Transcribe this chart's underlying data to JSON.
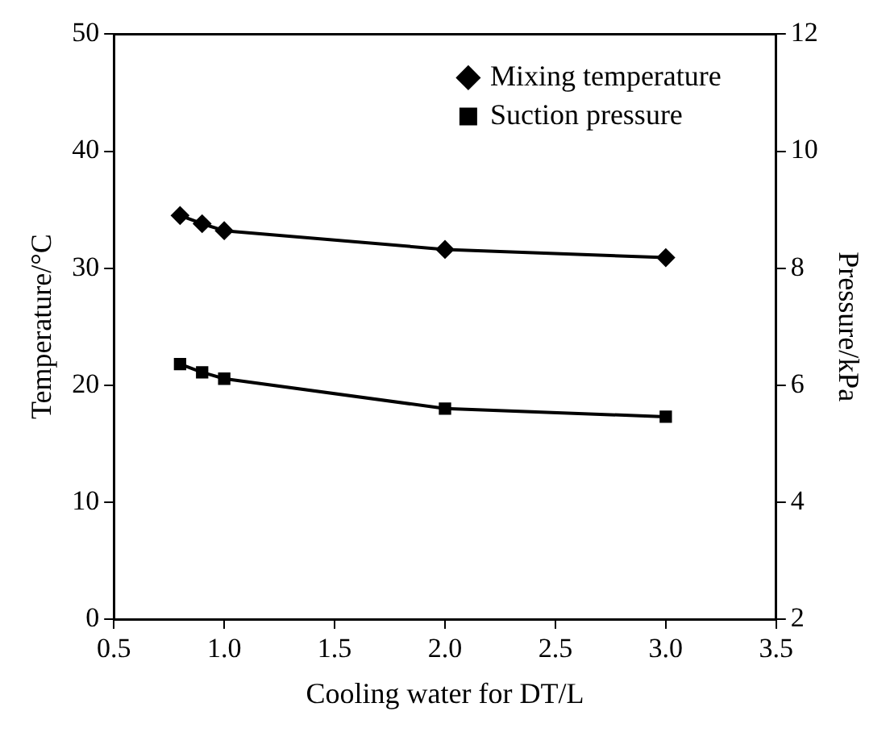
{
  "chart_data": {
    "type": "line",
    "xlabel": "Cooling water for DT/L",
    "ylabel": "Temperature/°C",
    "y2label": "Pressure/kPa",
    "x": [
      0.8,
      0.9,
      1.0,
      2.0,
      3.0
    ],
    "series": [
      {
        "name": "Mixing temperature",
        "color": "#000000",
        "marker": "diamond",
        "values": [
          34.5,
          33.8,
          33.2,
          31.6,
          30.9
        ]
      },
      {
        "name": "Suction pressure",
        "color": "#000000",
        "marker": "square",
        "axis": "y2",
        "values": [
          6.36,
          6.22,
          6.11,
          5.6,
          5.46
        ]
      }
    ],
    "xlim": [
      0.5,
      3.5
    ],
    "xticks": [
      0.5,
      {
        "value": 1,
        "label": "1.0"
      },
      1.5,
      {
        "value": 2,
        "label": "2.0"
      },
      2.5,
      {
        "value": 3,
        "label": "3.0"
      },
      3.5
    ],
    "ylim": [
      0,
      50
    ],
    "yticks": [
      0,
      10,
      20,
      30,
      40,
      50
    ],
    "y2lim": [
      2,
      12
    ],
    "y2ticks": [
      2,
      4,
      6,
      8,
      10,
      12
    ],
    "grid": false,
    "legend": "top right",
    "line_style": "solid"
  }
}
